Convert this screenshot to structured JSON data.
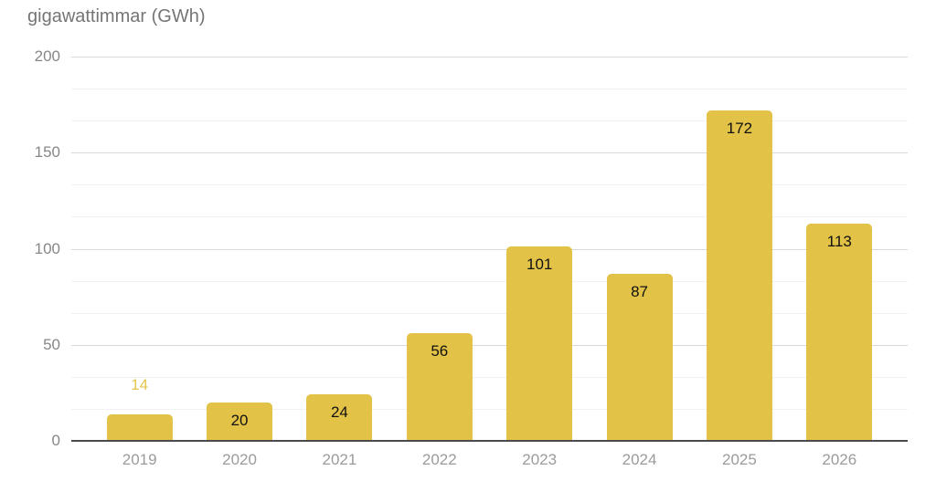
{
  "chart_data": {
    "type": "bar",
    "title": "gigawattimmar (GWh)",
    "xlabel": "",
    "ylabel": "",
    "categories": [
      "2019",
      "2020",
      "2021",
      "2022",
      "2023",
      "2024",
      "2025",
      "2026"
    ],
    "values": [
      14,
      20,
      24,
      56,
      101,
      87,
      172,
      113
    ],
    "data_labels": [
      "14",
      "20",
      "24",
      "56",
      "101",
      "87",
      "172",
      "113"
    ],
    "label_placements": [
      "above",
      "inside",
      "inside",
      "inside",
      "inside",
      "inside",
      "inside",
      "inside"
    ],
    "ylim": [
      0,
      200
    ],
    "yticks": [
      0,
      50,
      100,
      150,
      200
    ],
    "ytick_labels": [
      "0",
      "50",
      "100",
      "150",
      "200"
    ],
    "minor_gridlines_per_interval": 2,
    "grid": true,
    "legend_position": "none",
    "colors": {
      "bar": "#E2C247",
      "outside_label": "#E7C64F",
      "inside_label": "#111111",
      "title": "#757575",
      "y_tick_label": "#878787",
      "x_tick_label": "#9B9B9B",
      "major_gridline": "#D9D9D9",
      "minor_gridline": "#F1F1F1",
      "axis_line": "#4A4A4A",
      "background": "#FFFFFF"
    }
  }
}
